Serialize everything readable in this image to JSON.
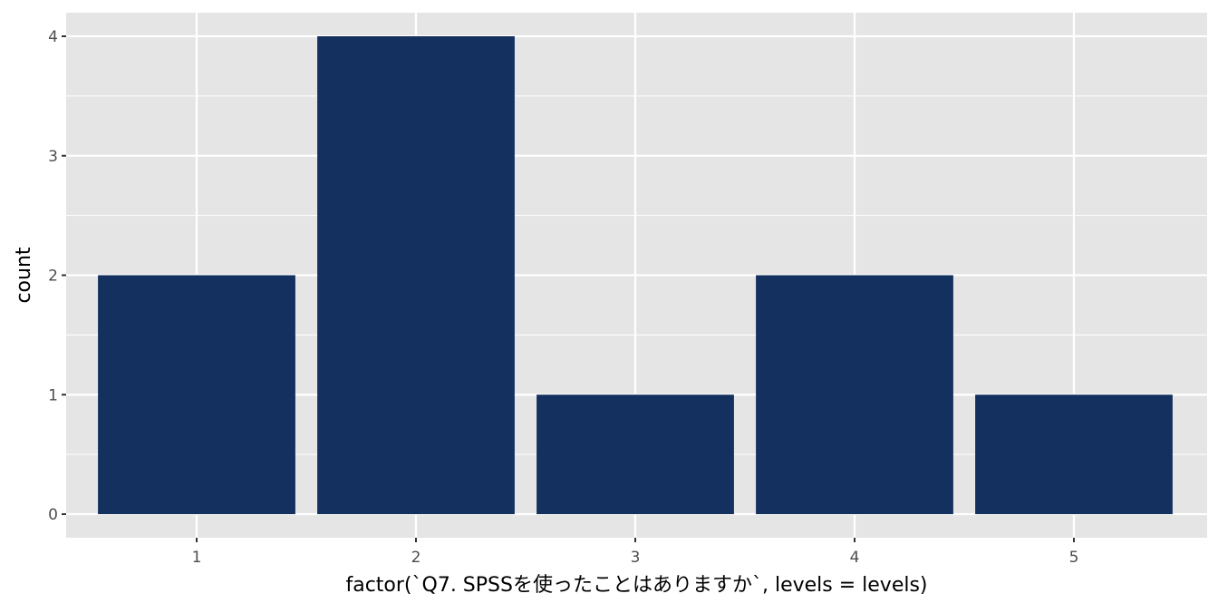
{
  "chart_data": {
    "type": "bar",
    "title": "",
    "xlabel": "factor(`Q7. SPSSを使ったことはありますか`, levels = levels)",
    "ylabel": "count",
    "categories": [
      "1",
      "2",
      "3",
      "4",
      "5"
    ],
    "values": [
      2,
      4,
      1,
      2,
      1
    ],
    "ylim": [
      0,
      4.2
    ],
    "yticks": [
      "0",
      "1",
      "2",
      "3",
      "4"
    ],
    "grid": true,
    "legend": "none",
    "colors": {
      "bar": "#13305f",
      "panel": "#e5e5e5",
      "grid": "#ffffff",
      "tick_text": "#4d4d4d",
      "axis_title": "#000000"
    }
  }
}
